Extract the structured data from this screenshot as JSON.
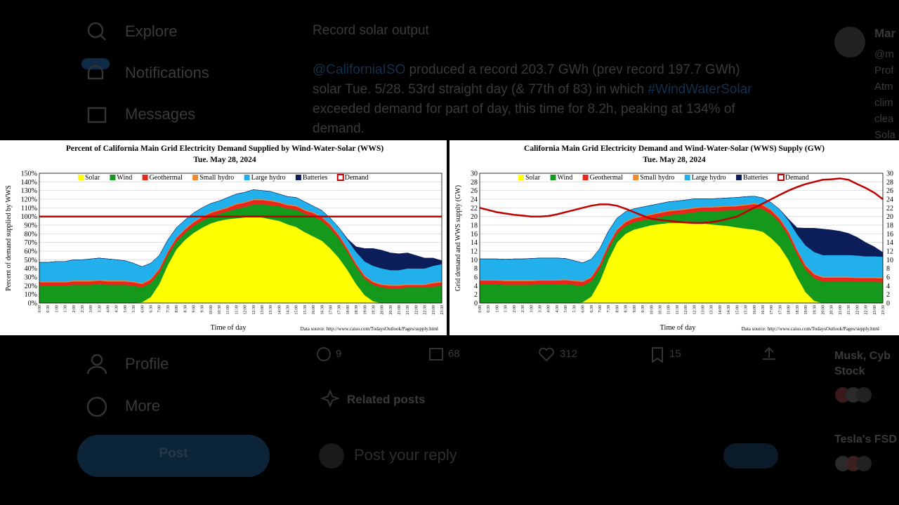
{
  "page": {
    "nav": [
      "Explore",
      "Notifications",
      "Messages",
      "Profile",
      "More"
    ],
    "post_button": "Post",
    "tweet": {
      "heading": "Record solar output",
      "text": [
        "@CaliforniaISO",
        " produced a record 203.7 GWh (prev record 197.7 GWh) solar Tue. 5/28. 53rd straight day (& 77th of 83) in which ",
        "#WindWaterSolar",
        " exceeded demand for part of day, this time for 8.2h, peaking at 134% of demand."
      ],
      "actions": [
        "9",
        "68",
        "312",
        "15"
      ]
    },
    "related": "Related posts",
    "reply_placeholder": "Post your reply",
    "sidebar": {
      "profile_name": "Mar",
      "profile_lines": [
        "@m",
        "Prof",
        "Atm",
        "clim",
        "clea",
        "Sola"
      ],
      "trend1": [
        "Musk, Cyb",
        "Stock"
      ],
      "trend2": "Tesla's FSD"
    }
  },
  "chart_data": [
    {
      "type": "stacked-area",
      "title": "Percent of California Main Grid Electricity Demand Supplied by Wind-Water-Solar (WWS)",
      "subtitle": "Tue. May 28, 2024",
      "y_label": "Percent of demand supplied by WWS",
      "x_label": "Time of day",
      "source": "Data source: http://www.caiso.com/TodaysOutlook/Pages/supply.html",
      "categories": [
        "0:00",
        "0:30",
        "1:00",
        "1:30",
        "2:00",
        "2:30",
        "3:00",
        "3:30",
        "4:00",
        "4:30",
        "5:00",
        "5:30",
        "6:00",
        "6:30",
        "7:00",
        "7:30",
        "8:00",
        "8:30",
        "9:00",
        "9:30",
        "10:00",
        "10:30",
        "11:00",
        "11:30",
        "12:00",
        "12:30",
        "13:00",
        "13:30",
        "14:00",
        "14:30",
        "15:00",
        "15:30",
        "16:00",
        "16:30",
        "17:00",
        "17:30",
        "18:00",
        "18:30",
        "19:00",
        "19:30",
        "20:00",
        "20:30",
        "21:00",
        "21:30",
        "22:00",
        "22:30",
        "23:00",
        "23:30"
      ],
      "ylim": [
        0,
        150
      ],
      "yticks": [
        {
          "value": 0,
          "label": "0%"
        },
        {
          "value": 10,
          "label": "10%"
        },
        {
          "value": 20,
          "label": "20%"
        },
        {
          "value": 30,
          "label": "30%"
        },
        {
          "value": 40,
          "label": "40%"
        },
        {
          "value": 50,
          "label": "50%"
        },
        {
          "value": 60,
          "label": "60%"
        },
        {
          "value": 70,
          "label": "70%"
        },
        {
          "value": 80,
          "label": "80%"
        },
        {
          "value": 90,
          "label": "90%"
        },
        {
          "value": 100,
          "label": "100%"
        },
        {
          "value": 110,
          "label": "110%"
        },
        {
          "value": 120,
          "label": "120%"
        },
        {
          "value": 130,
          "label": "130%"
        },
        {
          "value": 140,
          "label": "140%"
        },
        {
          "value": 150,
          "label": "150%"
        }
      ],
      "grid": true,
      "mirror_y_axis": false,
      "series": [
        {
          "name": "Solar",
          "color": "#ffff00",
          "type": "area",
          "values": [
            0,
            0,
            0,
            0,
            0,
            0,
            0,
            0,
            0,
            0,
            0,
            0,
            1,
            7,
            22,
            44,
            62,
            73,
            81,
            87,
            92,
            95,
            97,
            98,
            99,
            100,
            99,
            97,
            95,
            91,
            88,
            82,
            77,
            72,
            63,
            52,
            38,
            22,
            9,
            2,
            0,
            0,
            0,
            0,
            0,
            0,
            0,
            0
          ]
        },
        {
          "name": "Wind",
          "color": "#15991c",
          "type": "area",
          "values": [
            20,
            20,
            20,
            20,
            21,
            21,
            21,
            22,
            21,
            21,
            21,
            20,
            17,
            16,
            13,
            11,
            9,
            8,
            8,
            8,
            8,
            8,
            9,
            11,
            12,
            14,
            15,
            16,
            17,
            18,
            20,
            21,
            23,
            23,
            23,
            22,
            21,
            20,
            19,
            19,
            18,
            17,
            17,
            18,
            18,
            18,
            19,
            20
          ]
        },
        {
          "name": "Geothermal",
          "color": "#e8261c",
          "type": "area",
          "values": [
            4,
            4,
            4,
            4,
            4,
            4,
            4,
            4,
            4,
            4,
            4,
            4,
            4,
            4,
            4,
            4,
            4,
            4,
            4,
            4,
            4,
            4,
            4,
            5,
            5,
            5,
            5,
            5,
            4,
            4,
            4,
            4,
            4,
            4,
            4,
            4,
            3,
            3,
            3,
            3,
            3,
            3,
            3,
            3,
            3,
            3,
            4,
            4
          ]
        },
        {
          "name": "Small hydro",
          "color": "#f08a30",
          "type": "area",
          "values": [
            1,
            1,
            1,
            1,
            1,
            1,
            1,
            1,
            1,
            1,
            1,
            1,
            1,
            1,
            1,
            1,
            1,
            1,
            1,
            1,
            1,
            1,
            1,
            1,
            1,
            1,
            1,
            1,
            1,
            1,
            1,
            1,
            1,
            1,
            1,
            1,
            1,
            1,
            1,
            1,
            1,
            1,
            1,
            1,
            1,
            1,
            1,
            1
          ]
        },
        {
          "name": "Large hydro",
          "color": "#22b0ec",
          "type": "area",
          "values": [
            22,
            22,
            23,
            23,
            24,
            24,
            25,
            25,
            25,
            24,
            23,
            21,
            19,
            18,
            15,
            13,
            11,
            10,
            10,
            10,
            10,
            10,
            11,
            11,
            11,
            11,
            10,
            10,
            9,
            9,
            9,
            9,
            7,
            7,
            7,
            8,
            10,
            13,
            16,
            18,
            18,
            17,
            17,
            18,
            18,
            18,
            19,
            20
          ]
        },
        {
          "name": "Batteries",
          "color": "#0c1e5a",
          "type": "area",
          "values": [
            0,
            0,
            0,
            0,
            0,
            0,
            0,
            0,
            0,
            0,
            0,
            0,
            0,
            0,
            0,
            0,
            0,
            0,
            0,
            0,
            0,
            0,
            0,
            0,
            0,
            0,
            0,
            0,
            0,
            0,
            0,
            0,
            0,
            0,
            0,
            0,
            1,
            6,
            15,
            20,
            21,
            20,
            19,
            18,
            15,
            12,
            9,
            4
          ]
        },
        {
          "name": "Demand",
          "color": "#c00000",
          "type": "line",
          "values": [
            100,
            100,
            100,
            100,
            100,
            100,
            100,
            100,
            100,
            100,
            100,
            100,
            100,
            100,
            100,
            100,
            100,
            100,
            100,
            100,
            100,
            100,
            100,
            100,
            100,
            100,
            100,
            100,
            100,
            100,
            100,
            100,
            100,
            100,
            100,
            100,
            100,
            100,
            100,
            100,
            100,
            100,
            100,
            100,
            100,
            100,
            100,
            100
          ]
        }
      ]
    },
    {
      "type": "stacked-area",
      "title": "California Main Grid Electricity Demand and Wind-Water-Solar (WWS) Supply (GW)",
      "subtitle": "Tue. May 28, 2024",
      "y_label": "Grid demand and WWS supply (GW)",
      "x_label": "Time of day",
      "source": "Data source: http://www.caiso.com/TodaysOutlook/Pages/supply.html",
      "categories": [
        "0:00",
        "0:30",
        "1:00",
        "1:30",
        "2:00",
        "2:30",
        "3:00",
        "3:30",
        "4:00",
        "4:30",
        "5:00",
        "5:30",
        "6:00",
        "6:30",
        "7:00",
        "7:30",
        "8:00",
        "8:30",
        "9:00",
        "9:30",
        "10:00",
        "10:30",
        "11:00",
        "11:30",
        "12:00",
        "12:30",
        "13:00",
        "13:30",
        "14:00",
        "14:30",
        "15:00",
        "15:30",
        "16:00",
        "16:30",
        "17:00",
        "17:30",
        "18:00",
        "18:30",
        "19:00",
        "19:30",
        "20:00",
        "20:30",
        "21:00",
        "21:30",
        "22:00",
        "22:30",
        "23:00",
        "23:30"
      ],
      "ylim": [
        0,
        30
      ],
      "yticks": [
        0,
        2,
        4,
        6,
        8,
        10,
        12,
        14,
        16,
        18,
        20,
        22,
        24,
        26,
        28,
        30
      ],
      "grid": true,
      "mirror_y_axis": true,
      "series": [
        {
          "name": "Solar",
          "color": "#ffff00",
          "type": "area",
          "values": [
            0,
            0,
            0,
            0,
            0,
            0,
            0,
            0,
            0,
            0,
            0,
            0,
            0.2,
            1.5,
            5,
            10,
            14,
            16,
            17,
            17.5,
            18,
            18.3,
            18.5,
            18.5,
            18.5,
            18.5,
            18.4,
            18.2,
            18,
            17.8,
            17.5,
            17.2,
            17,
            16.5,
            15,
            13,
            10,
            6,
            2.5,
            0.5,
            0,
            0,
            0,
            0,
            0,
            0,
            0,
            0
          ]
        },
        {
          "name": "Wind",
          "color": "#15991c",
          "type": "area",
          "values": [
            4.3,
            4.3,
            4.3,
            4.2,
            4.2,
            4.2,
            4.2,
            4.3,
            4.3,
            4.3,
            4.4,
            4.2,
            3.8,
            3.5,
            3.0,
            2.5,
            2.0,
            1.8,
            1.7,
            1.6,
            1.5,
            1.6,
            1.8,
            2.0,
            2.2,
            2.5,
            2.8,
            3.0,
            3.3,
            3.6,
            4.0,
            4.5,
            5.0,
            5.2,
            5.5,
            5.5,
            5.5,
            5.3,
            5.2,
            5.2,
            5.0,
            5.0,
            5.0,
            5.0,
            4.9,
            4.9,
            4.9,
            4.8
          ]
        },
        {
          "name": "Geothermal",
          "color": "#e8261c",
          "type": "area",
          "values": [
            0.9,
            0.9,
            0.9,
            0.9,
            0.9,
            0.9,
            0.9,
            0.9,
            0.9,
            0.9,
            0.9,
            0.9,
            0.9,
            0.9,
            0.9,
            0.9,
            0.9,
            0.9,
            0.9,
            0.9,
            0.9,
            0.9,
            0.9,
            0.9,
            0.9,
            0.9,
            0.9,
            0.9,
            0.9,
            0.9,
            0.9,
            0.9,
            0.9,
            0.9,
            0.9,
            0.9,
            0.9,
            0.9,
            0.9,
            0.9,
            0.9,
            0.9,
            0.9,
            0.9,
            0.9,
            0.9,
            0.9,
            0.9
          ]
        },
        {
          "name": "Small hydro",
          "color": "#f08a30",
          "type": "area",
          "values": [
            0.2,
            0.2,
            0.2,
            0.2,
            0.2,
            0.2,
            0.2,
            0.2,
            0.2,
            0.2,
            0.2,
            0.2,
            0.2,
            0.2,
            0.2,
            0.2,
            0.2,
            0.2,
            0.2,
            0.2,
            0.2,
            0.2,
            0.2,
            0.2,
            0.2,
            0.2,
            0.2,
            0.2,
            0.2,
            0.2,
            0.2,
            0.2,
            0.2,
            0.2,
            0.2,
            0.2,
            0.2,
            0.2,
            0.2,
            0.2,
            0.2,
            0.2,
            0.2,
            0.2,
            0.2,
            0.2,
            0.2,
            0.2
          ]
        },
        {
          "name": "Large hydro",
          "color": "#22b0ec",
          "type": "area",
          "values": [
            4.8,
            4.8,
            4.8,
            4.8,
            4.9,
            4.9,
            5.0,
            5.0,
            5.0,
            5.0,
            4.8,
            4.5,
            4.2,
            4.0,
            3.5,
            3.0,
            2.5,
            2.2,
            2.0,
            2.0,
            2.0,
            2.0,
            2.0,
            2.0,
            2.0,
            2.0,
            1.8,
            1.8,
            1.8,
            1.8,
            1.8,
            1.8,
            1.6,
            1.5,
            1.6,
            2.0,
            2.5,
            3.5,
            4.5,
            5.0,
            5.0,
            5.0,
            5.0,
            5.0,
            5.0,
            4.8,
            4.8,
            4.8
          ]
        },
        {
          "name": "Batteries",
          "color": "#0c1e5a",
          "type": "area",
          "values": [
            0,
            0,
            0,
            0,
            0,
            0,
            0,
            0,
            0,
            0,
            0,
            0,
            0,
            0,
            0,
            0,
            0,
            0,
            0,
            0,
            0,
            0,
            0,
            0,
            0,
            0,
            0,
            0,
            0,
            0,
            0,
            0,
            0,
            0,
            0,
            0,
            0.3,
            1.5,
            4,
            5.5,
            6,
            5.8,
            5.5,
            5.0,
            4.2,
            3.2,
            2.2,
            1.0
          ]
        },
        {
          "name": "Demand",
          "color": "#c00000",
          "type": "line",
          "values": [
            22.0,
            21.5,
            21.0,
            20.7,
            20.4,
            20.2,
            20.0,
            20.0,
            20.1,
            20.5,
            21.0,
            21.5,
            22.0,
            22.5,
            22.8,
            22.8,
            22.5,
            21.8,
            21.0,
            20.2,
            19.5,
            19.2,
            19.0,
            18.8,
            18.6,
            18.5,
            18.5,
            18.7,
            19.0,
            19.5,
            20.0,
            21.0,
            22.0,
            23.0,
            24.0,
            25.0,
            26.0,
            26.8,
            27.5,
            28.0,
            28.5,
            28.6,
            28.8,
            28.5,
            27.5,
            26.6,
            25.5,
            24.0
          ]
        }
      ]
    }
  ]
}
